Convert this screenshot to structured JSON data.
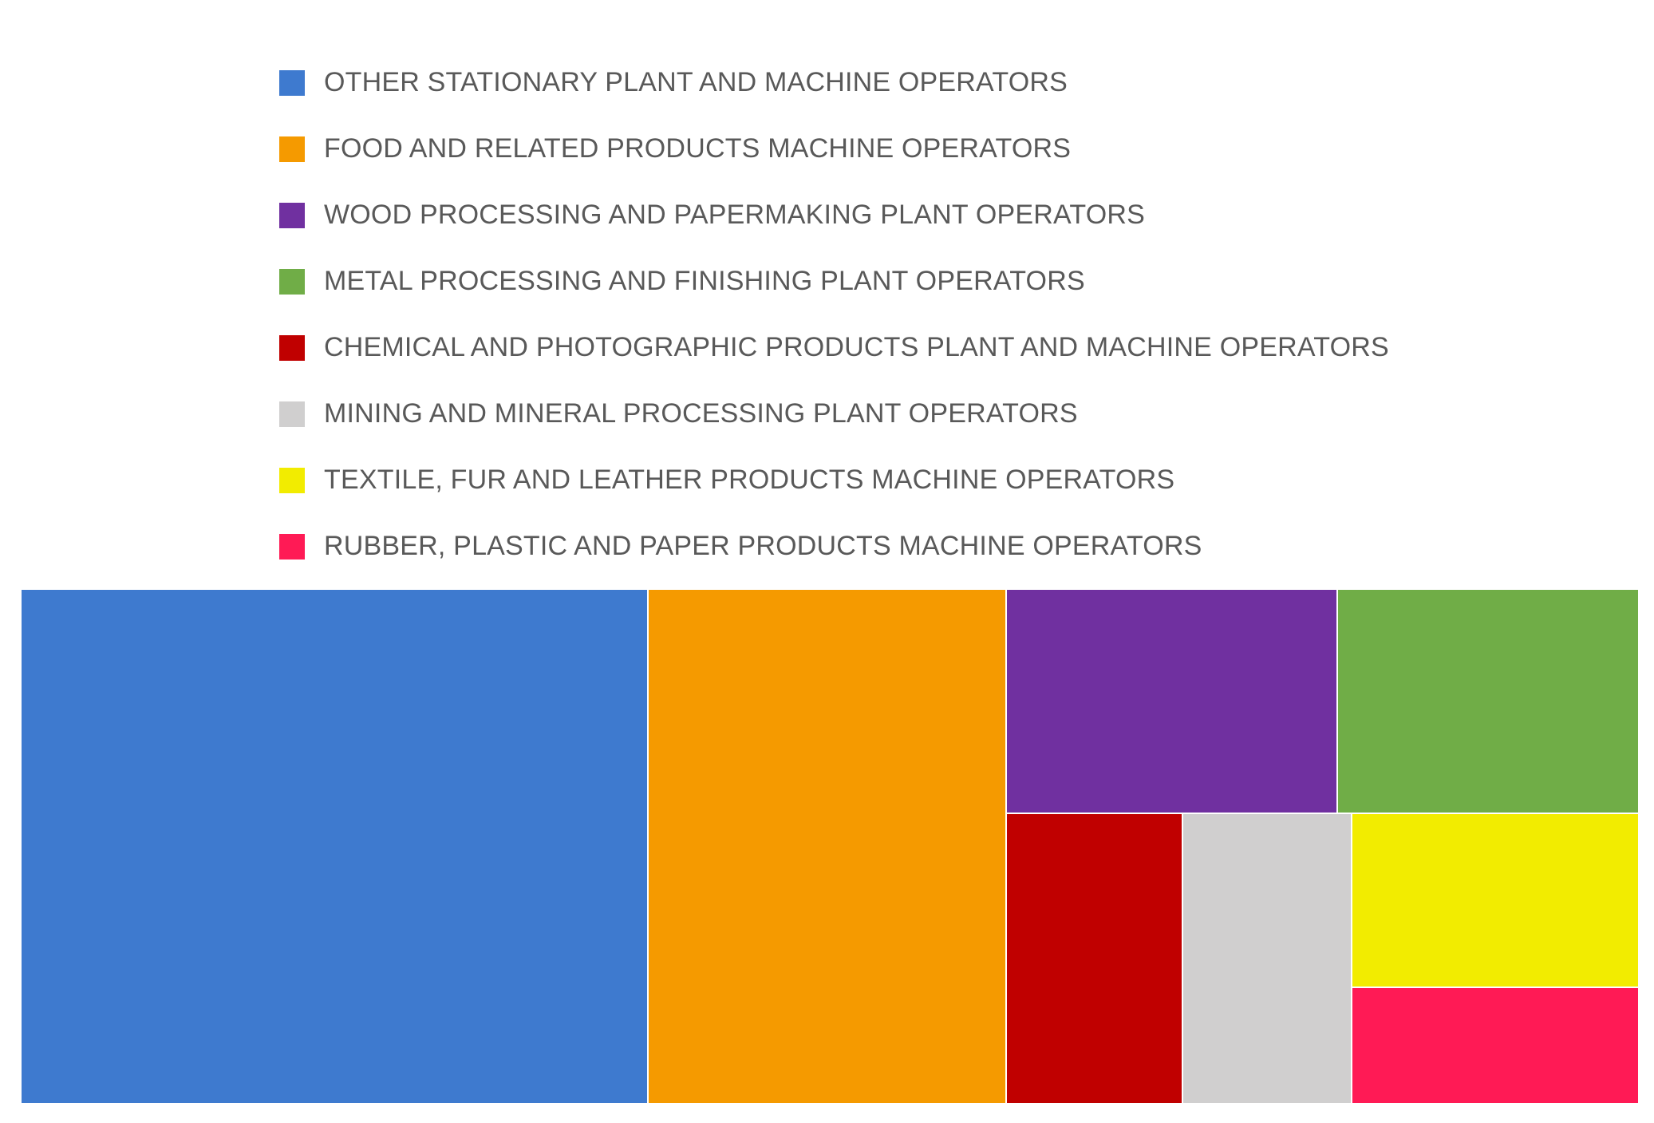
{
  "chart_data": {
    "type": "treemap",
    "legend_position": "top",
    "series": [
      {
        "name": "OTHER STATIONARY PLANT AND MACHINE OPERATORS",
        "value": 34.8,
        "color": "#3E7ACF"
      },
      {
        "name": "FOOD AND RELATED PRODUCTS MACHINE OPERATORS",
        "value": 19.9,
        "color": "#F59A00"
      },
      {
        "name": "WOOD PROCESSING AND PAPERMAKING PLANT OPERATORS",
        "value": 8.0,
        "color": "#7030A0"
      },
      {
        "name": "METAL PROCESSING AND FINISHING PLANT OPERATORS",
        "value": 7.3,
        "color": "#70AD47"
      },
      {
        "name": "CHEMICAL AND PHOTOGRAPHIC PRODUCTS PLANT AND MACHINE OPERATORS",
        "value": 5.5,
        "color": "#C00000"
      },
      {
        "name": "MINING AND MINERAL PROCESSING PLANT OPERATORS",
        "value": 5.3,
        "color": "#D0CFCF"
      },
      {
        "name": "TEXTILE, FUR AND LEATHER PRODUCTS MACHINE OPERATORS",
        "value": 5.4,
        "color": "#F2EC00"
      },
      {
        "name": "RUBBER, PLASTIC AND PAPER PRODUCTS MACHINE OPERATORS",
        "value": 3.6,
        "color": "#FF1A55"
      }
    ]
  }
}
